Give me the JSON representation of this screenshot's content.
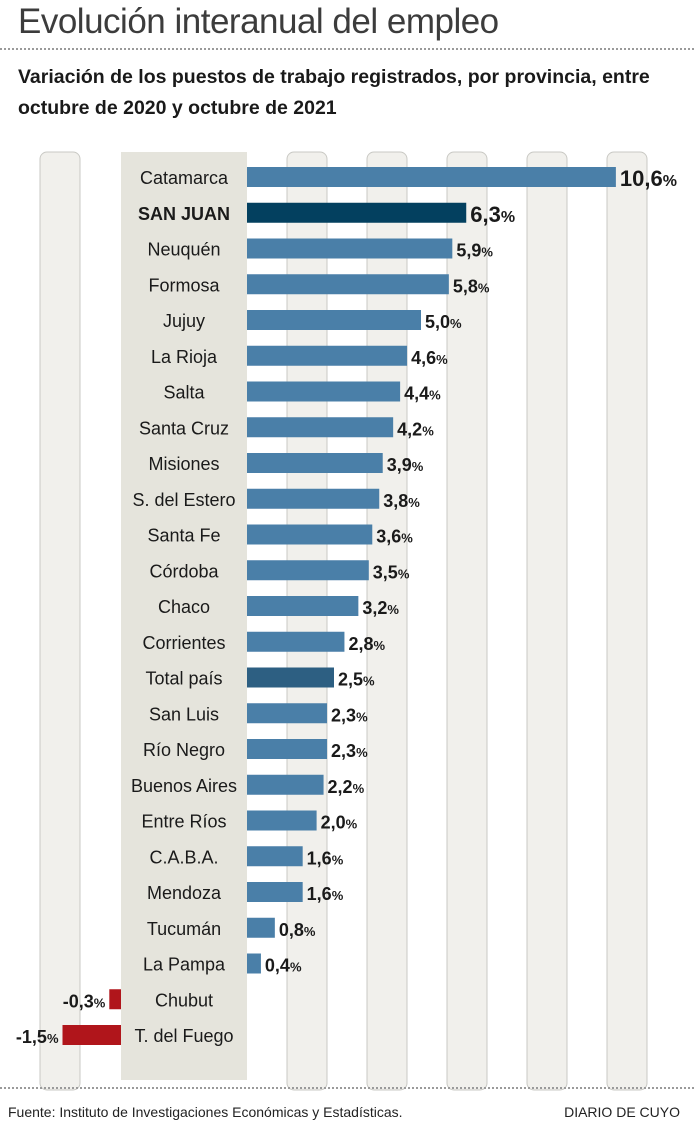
{
  "header": {
    "title": "Evolución interanual del empleo",
    "subtitle": "Variación de los puestos de trabajo registrados, por provincia, entre octubre de 2020 y octubre de 2021"
  },
  "footer": {
    "source": "Fuente: Instituto de Investigaciones Económicas y Estadísticas.",
    "brand": "DIARIO DE CUYO"
  },
  "colors": {
    "bar_default": "#4a7fa8",
    "bar_highlight": "#03405f",
    "bar_total": "#2d5f82",
    "bar_negative": "#b0151b",
    "label_panel": "#e5e4dc",
    "grid_column": "#f1f0ec"
  },
  "chart_data": {
    "type": "bar",
    "orientation": "horizontal",
    "title": "Evolución interanual del empleo",
    "subtitle": "Variación de los puestos de trabajo registrados, por provincia, entre octubre de 2020 y octubre de 2021",
    "xlabel": "",
    "ylabel": "",
    "unit": "%",
    "xlim": [
      -2,
      12
    ],
    "grid": true,
    "categories": [
      "Catamarca",
      "SAN JUAN",
      "Neuquén",
      "Formosa",
      "Jujuy",
      "La Rioja",
      "Salta",
      "Santa Cruz",
      "Misiones",
      "S. del Estero",
      "Santa Fe",
      "Córdoba",
      "Chaco",
      "Corrientes",
      "Total país",
      "San Luis",
      "Río Negro",
      "Buenos Aires",
      "Entre Ríos",
      "C.A.B.A.",
      "Mendoza",
      "Tucumán",
      "La Pampa",
      "Chubut",
      "T. del Fuego"
    ],
    "values": [
      10.6,
      6.3,
      5.9,
      5.8,
      5.0,
      4.6,
      4.4,
      4.2,
      3.9,
      3.8,
      3.6,
      3.5,
      3.2,
      2.8,
      2.5,
      2.3,
      2.3,
      2.2,
      2.0,
      1.6,
      1.6,
      0.8,
      0.4,
      -0.3,
      -1.5
    ],
    "value_labels": [
      "10,6",
      "6,3",
      "5,9",
      "5,8",
      "5,0",
      "4,6",
      "4,4",
      "4,2",
      "3,9",
      "3,8",
      "3,6",
      "3,5",
      "3,2",
      "2,8",
      "2,5",
      "2,3",
      "2,3",
      "2,2",
      "2,0",
      "1,6",
      "1,6",
      "0,8",
      "0,4",
      "-0,3",
      "-1,5"
    ],
    "highlight": [
      "SAN JUAN",
      "Total país"
    ]
  }
}
